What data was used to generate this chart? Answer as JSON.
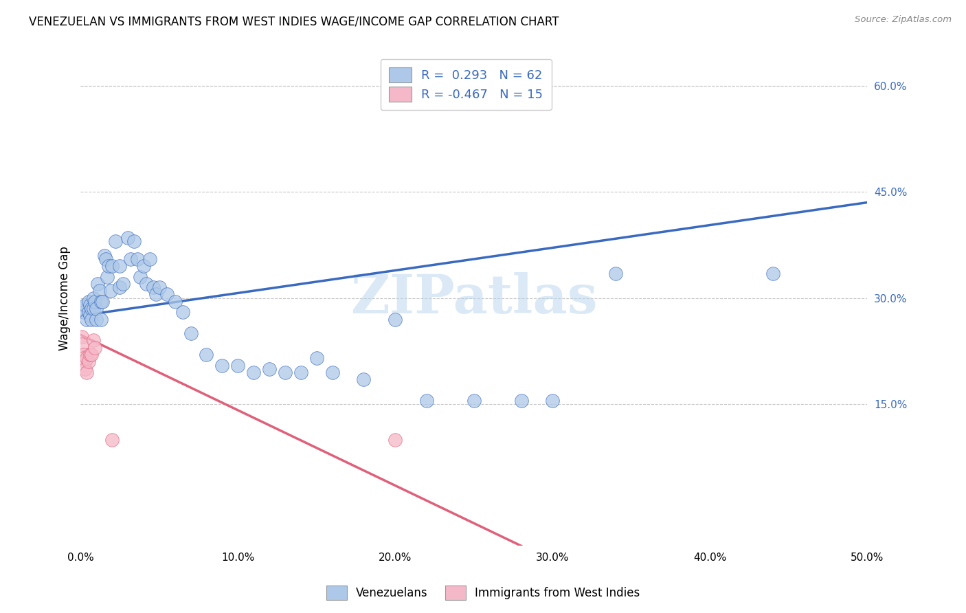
{
  "title": "VENEZUELAN VS IMMIGRANTS FROM WEST INDIES WAGE/INCOME GAP CORRELATION CHART",
  "source": "Source: ZipAtlas.com",
  "ylabel": "Wage/Income Gap",
  "xlim": [
    0.0,
    0.5
  ],
  "ylim": [
    -0.05,
    0.65
  ],
  "xticks": [
    0.0,
    0.1,
    0.2,
    0.3,
    0.4,
    0.5
  ],
  "yticks_right": [
    0.15,
    0.3,
    0.45,
    0.6
  ],
  "ytick_labels_right": [
    "15.0%",
    "30.0%",
    "45.0%",
    "60.0%"
  ],
  "xtick_labels": [
    "0.0%",
    "10.0%",
    "20.0%",
    "30.0%",
    "40.0%",
    "50.0%"
  ],
  "blue_color": "#adc8e8",
  "blue_line_color": "#3a6abf",
  "pink_color": "#f5b8c8",
  "pink_line_color": "#e0607a",
  "legend_R_blue": "0.293",
  "legend_N_blue": "62",
  "legend_R_pink": "-0.467",
  "legend_N_pink": "15",
  "watermark": "ZIPatlas",
  "venezuelan_x": [
    0.001,
    0.002,
    0.003,
    0.004,
    0.005,
    0.005,
    0.006,
    0.006,
    0.007,
    0.007,
    0.008,
    0.008,
    0.009,
    0.01,
    0.01,
    0.011,
    0.012,
    0.013,
    0.013,
    0.014,
    0.015,
    0.016,
    0.017,
    0.018,
    0.019,
    0.02,
    0.022,
    0.025,
    0.025,
    0.027,
    0.03,
    0.032,
    0.034,
    0.036,
    0.038,
    0.04,
    0.042,
    0.044,
    0.046,
    0.048,
    0.05,
    0.055,
    0.06,
    0.065,
    0.07,
    0.08,
    0.09,
    0.1,
    0.11,
    0.12,
    0.13,
    0.14,
    0.15,
    0.16,
    0.18,
    0.2,
    0.22,
    0.25,
    0.28,
    0.3,
    0.34,
    0.44
  ],
  "venezuelan_y": [
    0.285,
    0.28,
    0.29,
    0.27,
    0.295,
    0.28,
    0.275,
    0.29,
    0.285,
    0.27,
    0.3,
    0.285,
    0.295,
    0.27,
    0.285,
    0.32,
    0.31,
    0.295,
    0.27,
    0.295,
    0.36,
    0.355,
    0.33,
    0.345,
    0.31,
    0.345,
    0.38,
    0.345,
    0.315,
    0.32,
    0.385,
    0.355,
    0.38,
    0.355,
    0.33,
    0.345,
    0.32,
    0.355,
    0.315,
    0.305,
    0.315,
    0.305,
    0.295,
    0.28,
    0.25,
    0.22,
    0.205,
    0.205,
    0.195,
    0.2,
    0.195,
    0.195,
    0.215,
    0.195,
    0.185,
    0.27,
    0.155,
    0.155,
    0.155,
    0.155,
    0.335,
    0.335
  ],
  "westindies_x": [
    0.001,
    0.001,
    0.002,
    0.002,
    0.003,
    0.003,
    0.004,
    0.004,
    0.005,
    0.006,
    0.007,
    0.008,
    0.009,
    0.02,
    0.2
  ],
  "westindies_y": [
    0.245,
    0.235,
    0.22,
    0.215,
    0.21,
    0.2,
    0.215,
    0.195,
    0.21,
    0.22,
    0.22,
    0.24,
    0.23,
    0.1,
    0.1
  ],
  "blue_trend_x": [
    0.0,
    0.5
  ],
  "blue_trend_y": [
    0.275,
    0.435
  ],
  "pink_trend_x": [
    0.0,
    0.28
  ],
  "pink_trend_y": [
    0.248,
    -0.05
  ],
  "background_color": "#ffffff",
  "grid_color": "#c8c8c8"
}
